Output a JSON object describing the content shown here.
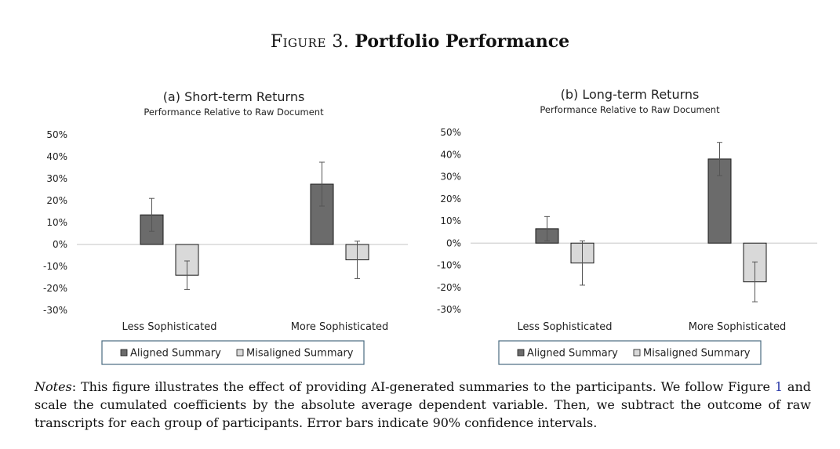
{
  "figure": {
    "label": "Figure 3.",
    "title": "Portfolio Performance"
  },
  "colors": {
    "aligned": "#6b6b6b",
    "misaligned": "#d9d9d9",
    "bar_stroke": "#1a1a1a",
    "axis_line": "#d0d0d0",
    "legend_border": "#4a6b80",
    "link": "#2b3aa8"
  },
  "notes": {
    "label": "Notes",
    "text_1": ": This figure illustrates the effect of providing AI-generated summaries to the participants. We follow Figure ",
    "ref": "1",
    "text_2": " and scale the cumulated coefficients by the absolute average dependent variable. Then, we subtract the outcome of raw transcripts for each group of participants. Error bars indicate 90% confidence intervals."
  },
  "chart_data": [
    {
      "type": "bar",
      "title": "(a) Short-term Returns",
      "subtitle": "Performance Relative to Raw Document",
      "categories": [
        "Less Sophisticated",
        "More Sophisticated"
      ],
      "series": [
        {
          "name": "Aligned Summary",
          "values": [
            13.5,
            27.5
          ],
          "err": [
            7.5,
            10
          ]
        },
        {
          "name": "Misaligned Summary",
          "values": [
            -14,
            -7
          ],
          "err": [
            6.5,
            8.5
          ]
        }
      ],
      "yticks": [
        "50%",
        "40%",
        "30%",
        "20%",
        "10%",
        "0%",
        "-10%",
        "-20%",
        "-30%"
      ],
      "ylim": [
        -30,
        50
      ],
      "grid": false,
      "legend": "bottom"
    },
    {
      "type": "bar",
      "title": "(b) Long-term Returns",
      "subtitle": "Performance Relative to Raw Document",
      "categories": [
        "Less Sophisticated",
        "More Sophisticated"
      ],
      "series": [
        {
          "name": "Aligned Summary",
          "values": [
            6.5,
            38
          ],
          "err": [
            5.5,
            7.5
          ]
        },
        {
          "name": "Misaligned Summary",
          "values": [
            -9,
            -17.5
          ],
          "err": [
            10,
            9
          ]
        }
      ],
      "yticks": [
        "50%",
        "40%",
        "30%",
        "20%",
        "10%",
        "0%",
        "-10%",
        "-20%",
        "-30%"
      ],
      "ylim": [
        -30,
        50
      ],
      "grid": false,
      "legend": "bottom"
    }
  ]
}
